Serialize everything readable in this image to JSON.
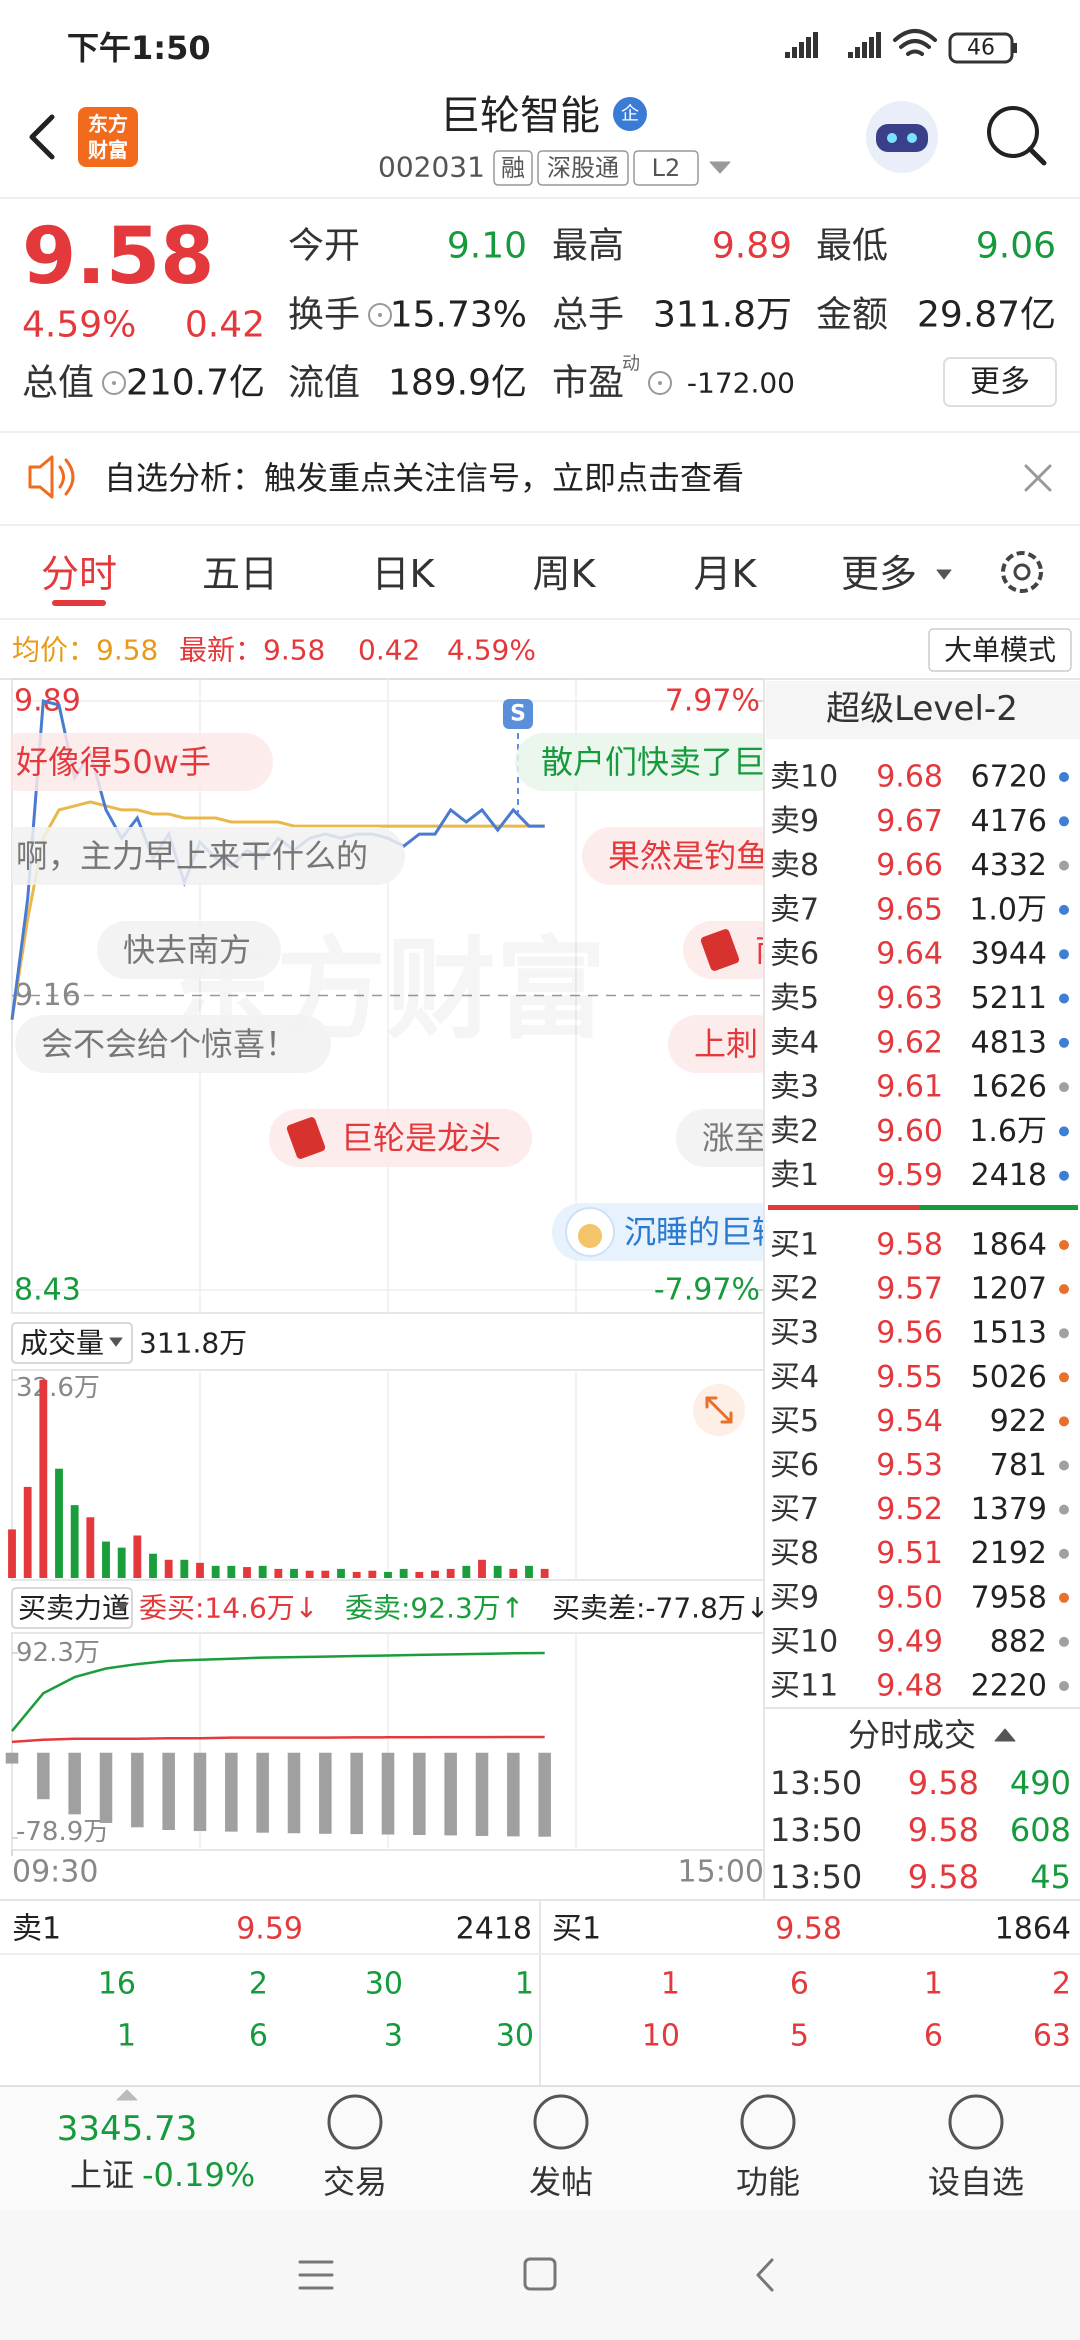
{
  "status_bar": {
    "time": "下午1:50",
    "battery": "46"
  },
  "header": {
    "logo": [
      "东方",
      "财富"
    ],
    "title": "巨轮智能",
    "badge": "企",
    "code": "002031",
    "tags": [
      "融",
      "深股通",
      "L2"
    ]
  },
  "quote": {
    "price": "9.58",
    "change_pct": "4.59%",
    "change": "0.42",
    "stats": [
      {
        "label": "今开",
        "value": "9.10"
      },
      {
        "label": "最高",
        "value": "9.89"
      },
      {
        "label": "最低",
        "value": "9.06"
      },
      {
        "label": "换手",
        "value": "15.73%"
      },
      {
        "label": "总手",
        "value": "311.8万"
      },
      {
        "label": "金额",
        "value": "29.87亿"
      },
      {
        "label": "总值",
        "value": "210.7亿"
      },
      {
        "label": "流值",
        "value": "189.9亿"
      },
      {
        "label": "市盈",
        "value": "-172.00"
      }
    ],
    "pe_sup": "动",
    "more": "更多"
  },
  "notice": "自选分析：触发重点关注信号，立即点击查看",
  "tabs": [
    "分时",
    "五日",
    "日K",
    "周K",
    "月K",
    "更多"
  ],
  "info": {
    "avg_label": "均价：",
    "avg": "9.58",
    "latest_label": "最新：",
    "latest": "9.58",
    "change": "0.42",
    "change_pct": "4.59%",
    "mode": "大单模式"
  },
  "watermark": "东方财富",
  "chart_data": [
    {
      "type": "line",
      "annotation": "S",
      "x": [
        0,
        5,
        10,
        15,
        20,
        25,
        30,
        35,
        40,
        45,
        50,
        55,
        60,
        65,
        70,
        75,
        80,
        85,
        90,
        95,
        100,
        105,
        110,
        115,
        120,
        125,
        130,
        135,
        140,
        145,
        150,
        155,
        160,
        165,
        170
      ],
      "xlim": [
        0,
        240
      ],
      "ylim": [
        8.43,
        9.89
      ],
      "yticks": [
        9.89,
        9.16,
        8.43
      ],
      "y2lim": [
        -7.97,
        7.97
      ],
      "y2ticks": [
        {
          "value": 7.97,
          "label": "7.97%"
        },
        {
          "value": -7.97,
          "label": "-7.97%"
        }
      ],
      "series": [
        {
          "color": "#4a7bd0",
          "values": [
            9.1,
            9.4,
            9.89,
            9.88,
            9.7,
            9.76,
            9.62,
            9.55,
            9.6,
            9.5,
            9.56,
            9.44,
            9.54,
            9.5,
            9.48,
            9.52,
            9.5,
            9.55,
            9.52,
            9.55,
            9.56,
            9.55,
            9.56,
            9.56,
            9.55,
            9.53,
            9.56,
            9.56,
            9.62,
            9.59,
            9.62,
            9.57,
            9.62,
            9.58,
            9.58
          ]
        },
        {
          "color": "#e8b84a",
          "values": [
            9.1,
            9.35,
            9.55,
            9.62,
            9.63,
            9.64,
            9.63,
            9.62,
            9.62,
            9.61,
            9.61,
            9.6,
            9.6,
            9.6,
            9.59,
            9.59,
            9.59,
            9.59,
            9.58,
            9.58,
            9.58,
            9.58,
            9.58,
            9.58,
            9.58,
            9.58,
            9.58,
            9.58,
            9.58,
            9.58,
            9.58,
            9.58,
            9.58,
            9.58,
            9.58
          ]
        }
      ]
    },
    {
      "type": "bar",
      "title": "成交量",
      "subtitle": "311.8万",
      "up_color": "#e4393c",
      "down_color": "#1a9e3c",
      "x": [
        0,
        5,
        10,
        15,
        20,
        25,
        30,
        35,
        40,
        45,
        50,
        55,
        60,
        65,
        70,
        75,
        80,
        85,
        90,
        95,
        100,
        105,
        110,
        115,
        120,
        125,
        130,
        135,
        140,
        145,
        150,
        155,
        160,
        165,
        170
      ],
      "xlim": [
        0,
        240
      ],
      "ylim": [
        0,
        32.6
      ],
      "yticks": [
        {
          "value": 32.6,
          "label": "32.6万"
        }
      ],
      "values": [
        8,
        15,
        32.6,
        18,
        12,
        10,
        6,
        5,
        7,
        4,
        3,
        3,
        2.5,
        2,
        2,
        1.8,
        2,
        1.5,
        1.5,
        1.2,
        1.2,
        1.5,
        1,
        1.2,
        1,
        1.5,
        1,
        1.2,
        1.5,
        2,
        3,
        2,
        1.5,
        2,
        1.5
      ]
    },
    {
      "type": "combo",
      "title": "买卖力道",
      "labels": [
        {
          "text": "委买:14.6万↓",
          "color": "#e4393c"
        },
        {
          "text": "委卖:92.3万↑",
          "color": "#1a9e3c"
        },
        {
          "text": "买卖差:-77.8万↓",
          "color": "#222222"
        }
      ],
      "x": [
        0,
        10,
        20,
        30,
        40,
        50,
        60,
        70,
        80,
        90,
        100,
        110,
        120,
        130,
        140,
        150,
        160,
        170
      ],
      "xlim": [
        0,
        240
      ],
      "xticks": [
        {
          "value": 0,
          "label": "09:30"
        },
        {
          "value": 240,
          "label": "15:00"
        }
      ],
      "ylim": [
        -78.9,
        92.3
      ],
      "yticks": [
        {
          "value": 92.3,
          "label": "92.3万"
        },
        {
          "value": -78.9,
          "label": "-78.9万"
        }
      ],
      "series": [
        {
          "kind": "bar",
          "color": "#a0a0a0",
          "values": [
            -10,
            -43,
            -57,
            -65,
            -69,
            -71.5,
            -72.5,
            -73,
            -74,
            -74.5,
            -75,
            -75.3,
            -75.7,
            -76.1,
            -76.5,
            -77,
            -77.4,
            -77.7
          ]
        },
        {
          "kind": "line",
          "color": "#1a9e3c",
          "values": [
            20,
            55,
            70,
            78,
            82,
            85,
            86,
            87,
            88,
            88.5,
            89,
            89.5,
            90,
            90.5,
            91,
            91.5,
            92,
            92.3
          ]
        },
        {
          "kind": "line",
          "color": "#e4393c",
          "values": [
            10,
            12,
            13,
            13,
            13,
            13.5,
            13.5,
            14,
            14,
            14,
            14,
            14.2,
            14.3,
            14.4,
            14.5,
            14.5,
            14.6,
            14.6
          ]
        }
      ]
    }
  ],
  "danmaku": [
    "好像得50w手",
    "散户们快卖了巨",
    "啊，主力早上来干什么的",
    "果然是钓鱼",
    "快去南方",
    "南",
    "会不会给个惊喜！",
    "上刺",
    "巨轮是龙头",
    "涨至",
    "沉睡的巨轮"
  ],
  "order_book": {
    "title": "超级Level-2",
    "asks": [
      {
        "label": "卖10",
        "price": "9.68",
        "volume": "6720",
        "dot": "#3d7fd6"
      },
      {
        "label": "卖9",
        "price": "9.67",
        "volume": "4176",
        "dot": "#3d7fd6"
      },
      {
        "label": "卖8",
        "price": "9.66",
        "volume": "4332",
        "dot": "#a0a0a0"
      },
      {
        "label": "卖7",
        "price": "9.65",
        "volume": "1.0万",
        "dot": "#3d7fd6"
      },
      {
        "label": "卖6",
        "price": "9.64",
        "volume": "3944",
        "dot": "#3d7fd6"
      },
      {
        "label": "卖5",
        "price": "9.63",
        "volume": "5211",
        "dot": "#3d7fd6"
      },
      {
        "label": "卖4",
        "price": "9.62",
        "volume": "4813",
        "dot": "#3d7fd6"
      },
      {
        "label": "卖3",
        "price": "9.61",
        "volume": "1626",
        "dot": "#a0a0a0"
      },
      {
        "label": "卖2",
        "price": "9.60",
        "volume": "1.6万",
        "dot": "#3d7fd6"
      },
      {
        "label": "卖1",
        "price": "9.59",
        "volume": "2418",
        "dot": "#3d7fd6"
      }
    ],
    "bids": [
      {
        "label": "买1",
        "price": "9.58",
        "volume": "1864",
        "dot": "#e8702a"
      },
      {
        "label": "买2",
        "price": "9.57",
        "volume": "1207",
        "dot": "#e8702a"
      },
      {
        "label": "买3",
        "price": "9.56",
        "volume": "1513",
        "dot": "#a0a0a0"
      },
      {
        "label": "买4",
        "price": "9.55",
        "volume": "5026",
        "dot": "#e8702a"
      },
      {
        "label": "买5",
        "price": "9.54",
        "volume": "922",
        "dot": "#e8702a"
      },
      {
        "label": "买6",
        "price": "9.53",
        "volume": "781",
        "dot": "#a0a0a0"
      },
      {
        "label": "买7",
        "price": "9.52",
        "volume": "1379",
        "dot": "#a0a0a0"
      },
      {
        "label": "买8",
        "price": "9.51",
        "volume": "2192",
        "dot": "#a0a0a0"
      },
      {
        "label": "买9",
        "price": "9.50",
        "volume": "7958",
        "dot": "#e8702a"
      },
      {
        "label": "买10",
        "price": "9.49",
        "volume": "882",
        "dot": "#a0a0a0"
      },
      {
        "label": "买11",
        "price": "9.48",
        "volume": "2220",
        "dot": "#a0a0a0"
      }
    ],
    "trades_title": "分时成交",
    "trades": [
      [
        "13:50",
        "9.58",
        "490"
      ],
      [
        "13:50",
        "9.58",
        "608"
      ],
      [
        "13:50",
        "9.58",
        "45"
      ]
    ]
  },
  "bottom_table": {
    "left_header": [
      "卖1",
      "9.59",
      "2418"
    ],
    "right_header": [
      "买1",
      "9.58",
      "1864"
    ],
    "left_rows": [
      [
        "16",
        "2",
        "30",
        "1"
      ],
      [
        "1",
        "6",
        "3",
        "30"
      ]
    ],
    "right_rows": [
      [
        "1",
        "6",
        "1",
        "2"
      ],
      [
        "10",
        "5",
        "6",
        "63"
      ]
    ]
  },
  "bottom_nav": {
    "index_value": "3345.73",
    "index_name": "上证",
    "index_change": "-0.19%",
    "items": [
      "交易",
      "发帖",
      "功能",
      "设自选"
    ]
  }
}
